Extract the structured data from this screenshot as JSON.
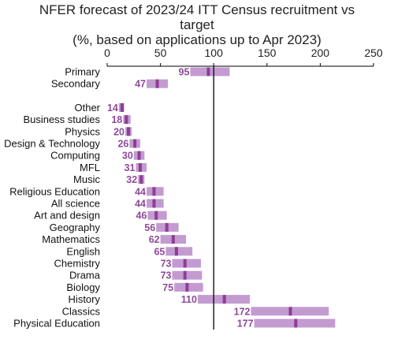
{
  "chart_data": {
    "type": "bar",
    "title_lines": [
      "NFER forecast of 2023/24 ITT Census recruitment vs",
      "target",
      "(%, based on applications up to Apr 2023)"
    ],
    "xlim": [
      0,
      250
    ],
    "xticks": [
      "0",
      "50",
      "100",
      "150",
      "200",
      "250"
    ],
    "xtick_values": [
      0,
      50,
      100,
      150,
      200,
      250
    ],
    "reference_line": 100,
    "grid": false,
    "legend": "none",
    "range_color": "#c39bd1",
    "marker_color": "#8e3d96",
    "label_color": "#8e4a9a",
    "groups": [
      [
        {
          "name": "Primary",
          "value": 95,
          "label": "95",
          "low": 78,
          "high": 115
        },
        {
          "name": "Secondary",
          "value": 47,
          "label": "47",
          "low": 37,
          "high": 57
        }
      ],
      [
        {
          "name": "Other",
          "value": 14,
          "label": "14",
          "low": 11,
          "high": 16
        },
        {
          "name": "Business studies",
          "value": 18,
          "label": "18",
          "low": 15,
          "high": 22
        },
        {
          "name": "Physics",
          "value": 20,
          "label": "20",
          "low": 17,
          "high": 23
        },
        {
          "name": "Design & Technology",
          "value": 26,
          "label": "26",
          "low": 21,
          "high": 31
        },
        {
          "name": "Computing",
          "value": 30,
          "label": "30",
          "low": 25,
          "high": 35
        },
        {
          "name": "MFL",
          "value": 31,
          "label": "31",
          "low": 27,
          "high": 37
        },
        {
          "name": "Music",
          "value": 32,
          "label": "32",
          "low": 29,
          "high": 35
        },
        {
          "name": "Religious Education",
          "value": 44,
          "label": "44",
          "low": 37,
          "high": 53
        },
        {
          "name": "All science",
          "value": 44,
          "label": "44",
          "low": 37,
          "high": 53
        },
        {
          "name": "Art and design",
          "value": 46,
          "label": "46",
          "low": 38,
          "high": 56
        },
        {
          "name": "Geography",
          "value": 56,
          "label": "56",
          "low": 46,
          "high": 67
        },
        {
          "name": "Mathematics",
          "value": 62,
          "label": "62",
          "low": 50,
          "high": 74
        },
        {
          "name": "English",
          "value": 65,
          "label": "65",
          "low": 55,
          "high": 80
        },
        {
          "name": "Chemistry",
          "value": 73,
          "label": "73",
          "low": 61,
          "high": 88
        },
        {
          "name": "Drama",
          "value": 73,
          "label": "73",
          "low": 61,
          "high": 89
        },
        {
          "name": "Biology",
          "value": 75,
          "label": "75",
          "low": 63,
          "high": 90
        },
        {
          "name": "History",
          "value": 110,
          "label": "110",
          "low": 85,
          "high": 134
        },
        {
          "name": "Classics",
          "value": 172,
          "label": "172",
          "low": 135,
          "high": 208
        },
        {
          "name": "Physical Education",
          "value": 177,
          "label": "177",
          "low": 138,
          "high": 214
        }
      ]
    ]
  }
}
